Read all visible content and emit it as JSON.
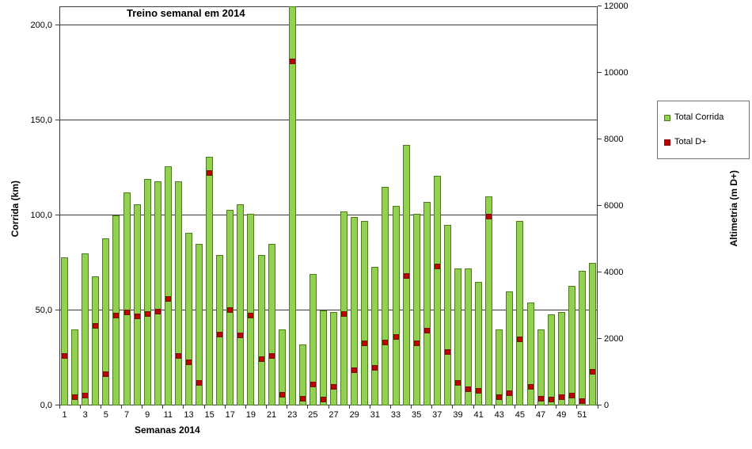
{
  "chart_data": {
    "type": "bar",
    "title": "Treino semanal em 2014",
    "xlabel": "Semanas 2014",
    "ylabel_left": "Corrida (km)",
    "ylabel_right": "Altimetria (m D+)",
    "grid": true,
    "legend_position": "right",
    "categories": [
      1,
      2,
      3,
      4,
      5,
      6,
      7,
      8,
      9,
      10,
      11,
      12,
      13,
      14,
      15,
      16,
      17,
      18,
      19,
      20,
      21,
      22,
      23,
      24,
      25,
      26,
      27,
      28,
      29,
      30,
      31,
      32,
      33,
      34,
      35,
      36,
      37,
      38,
      39,
      40,
      41,
      42,
      43,
      44,
      45,
      46,
      47,
      48,
      49,
      50,
      51,
      52
    ],
    "x_tick_labels": [
      "1",
      "3",
      "5",
      "7",
      "9",
      "11",
      "13",
      "15",
      "17",
      "19",
      "21",
      "23",
      "25",
      "27",
      "29",
      "31",
      "33",
      "35",
      "37",
      "39",
      "41",
      "43",
      "45",
      "47",
      "49",
      "51"
    ],
    "left_axis": {
      "min": 0,
      "max": 210,
      "ticks": [
        0,
        50,
        100,
        150,
        200
      ],
      "tick_labels": [
        "0,0",
        "50,0",
        "100,0",
        "150,0",
        "200,0"
      ]
    },
    "right_axis": {
      "min": 0,
      "max": 12000,
      "ticks": [
        0,
        2000,
        4000,
        6000,
        8000,
        10000,
        12000
      ],
      "tick_labels": [
        "0",
        "2000",
        "4000",
        "6000",
        "8000",
        "10000",
        "12000"
      ]
    },
    "series": [
      {
        "name": "Total Corrida",
        "type": "bar",
        "axis": "left",
        "color": "#92d050",
        "border_color": "#4e7b21",
        "values": [
          78,
          40,
          80,
          68,
          88,
          100,
          112,
          106,
          119,
          118,
          126,
          118,
          91,
          85,
          131,
          79,
          103,
          106,
          101,
          79,
          85,
          40,
          210,
          32,
          69,
          50,
          49,
          102,
          99,
          97,
          73,
          115,
          105,
          137,
          101,
          107,
          121,
          95,
          72,
          72,
          65,
          110,
          40,
          60,
          97,
          54,
          40,
          48,
          49,
          63,
          71,
          75
        ]
      },
      {
        "name": "Total D+",
        "type": "scatter",
        "axis": "right",
        "color": "#c00000",
        "border_color": "#7f0d0d",
        "values": [
          1500,
          250,
          300,
          2400,
          930,
          2700,
          2790,
          2670,
          2740,
          2830,
          3200,
          1480,
          1290,
          690,
          7000,
          2140,
          2880,
          2100,
          2710,
          1400,
          1500,
          330,
          10350,
          210,
          640,
          170,
          550,
          2760,
          1070,
          1880,
          1120,
          1900,
          2050,
          3900,
          1880,
          2260,
          4170,
          1600,
          670,
          480,
          430,
          5670,
          240,
          380,
          2000,
          550,
          210,
          190,
          240,
          290,
          120,
          1020
        ]
      }
    ]
  }
}
